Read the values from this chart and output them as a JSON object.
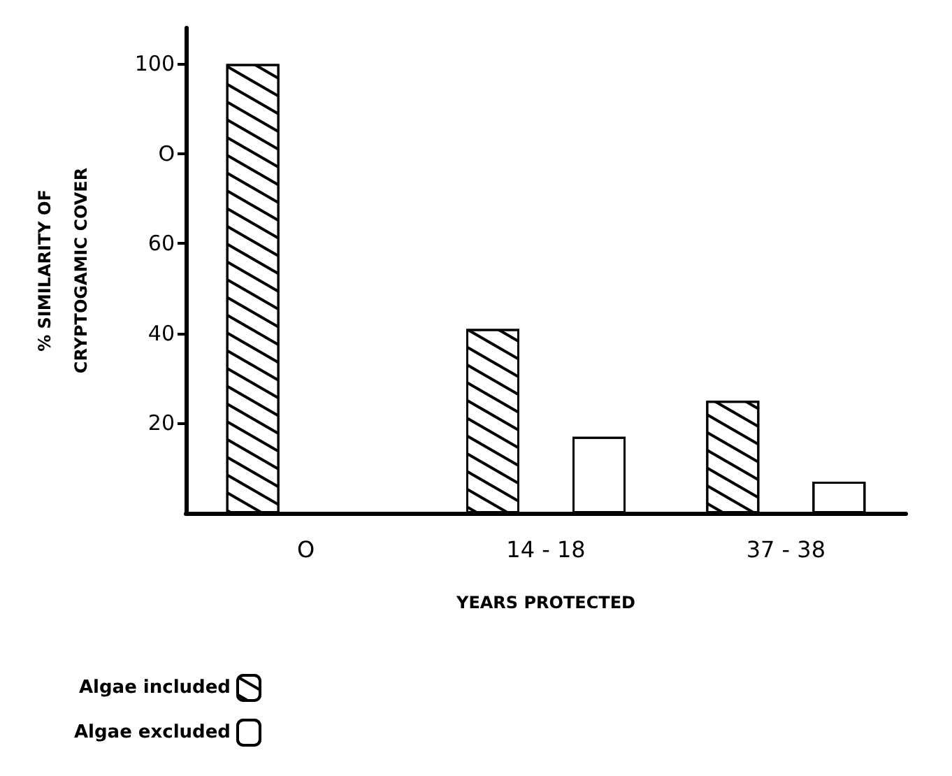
{
  "chart_data": {
    "type": "bar",
    "xlabel": "YEARS PROTECTED",
    "ylabel": "% SIMILARITY OF\nCRYPTOGAMIC COVER",
    "categories": [
      "O",
      "14 - 18",
      "37 - 38"
    ],
    "series": [
      {
        "name": "Algae included",
        "color": "#ffffff",
        "values": [
          100,
          41,
          25
        ]
      },
      {
        "name": "Algae excluded",
        "color": "#ffffff",
        "values": [
          null,
          17,
          7
        ]
      }
    ],
    "ylim": [
      0,
      108
    ],
    "yticks": [
      20,
      40,
      60,
      {
        "value": 80,
        "label": "O"
      },
      100
    ],
    "grid": false,
    "legend": "bottom left"
  }
}
